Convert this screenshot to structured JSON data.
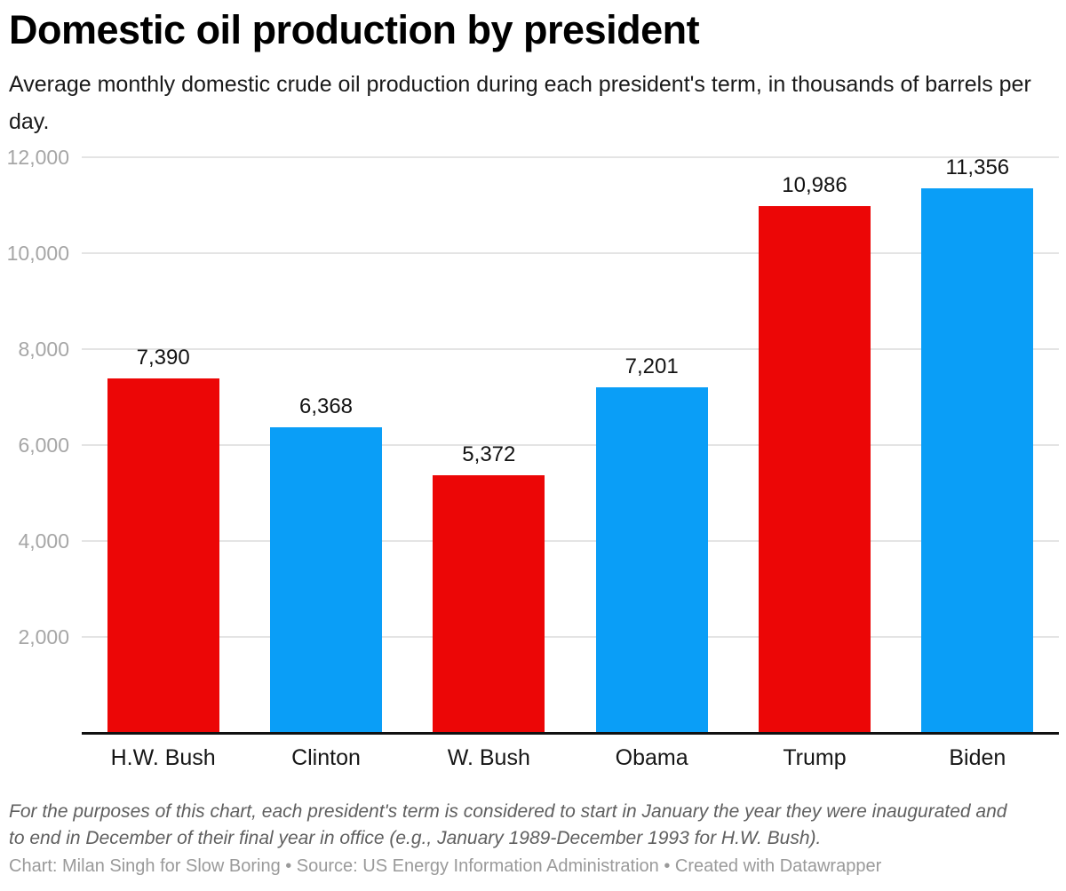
{
  "header": {
    "title": "Domestic oil production by president",
    "subtitle": "Average monthly domestic crude oil production during each president's term, in thousands of barrels per day."
  },
  "chart_data": {
    "type": "bar",
    "title": "Domestic oil production by president",
    "subtitle": "Average monthly domestic crude oil production during each president's term, in thousands of barrels per day.",
    "categories": [
      "H.W. Bush",
      "Clinton",
      "W. Bush",
      "Obama",
      "Trump",
      "Biden"
    ],
    "values": [
      7390,
      6368,
      5372,
      7201,
      10986,
      11356
    ],
    "value_labels": [
      "7,390",
      "6,368",
      "5,372",
      "7,201",
      "10,986",
      "11,356"
    ],
    "bar_colors": [
      "#ec0606",
      "#0a9ef7",
      "#ec0606",
      "#0a9ef7",
      "#ec0606",
      "#0a9ef7"
    ],
    "xlabel": "",
    "ylabel": "",
    "ylim": [
      0,
      12000
    ],
    "yticks": [
      2000,
      4000,
      6000,
      8000,
      10000,
      12000
    ],
    "ytick_labels": [
      "2,000",
      "4,000",
      "6,000",
      "8,000",
      "10,000",
      "12,000"
    ],
    "grid": true,
    "legend": false
  },
  "colors": {
    "republican_red": "#ec0606",
    "democrat_blue": "#0a9ef7",
    "gridline": "#e4e4e4",
    "axis_line": "#111111",
    "ytick_text": "#a6a6a6",
    "label_text": "#131313",
    "footnote_text": "#5f5f5f",
    "credit_text": "#9a9a9a"
  },
  "footer": {
    "note": "For the purposes of this chart, each president's term is considered to start in January the year they were inaugurated and to end in December of their final year in office (e.g., January 1989-December 1993 for H.W. Bush).",
    "credit": "Chart: Milan Singh for Slow Boring • Source: US Energy Information Administration • Created with Datawrapper"
  }
}
